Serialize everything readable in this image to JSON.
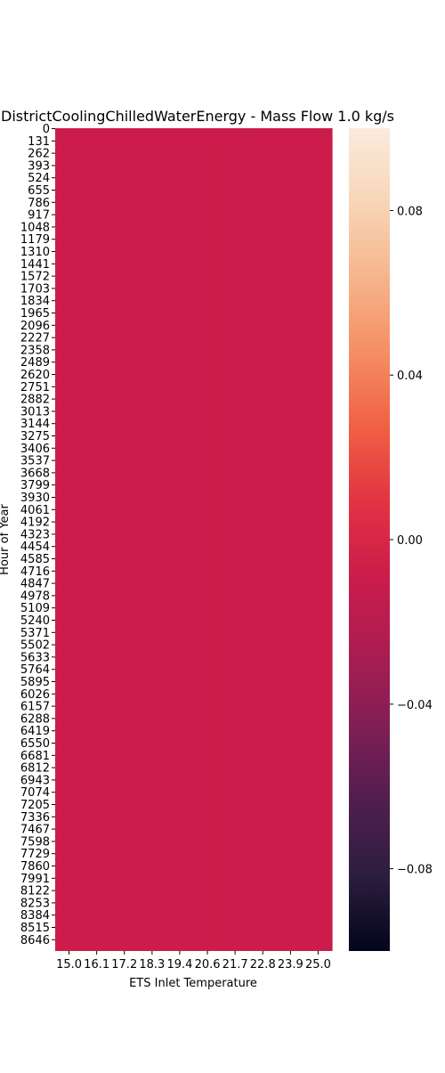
{
  "chart_data": {
    "type": "heatmap",
    "title": "DistrictCoolingChilledWaterEnergy - Mass Flow 1.0 kg/s",
    "xlabel": "ETS Inlet Temperature",
    "ylabel": "Hour of Year",
    "x_tick_labels": [
      "15.0",
      "16.1",
      "17.2",
      "18.3",
      "19.4",
      "20.6",
      "21.7",
      "22.8",
      "23.9",
      "25.0"
    ],
    "y_tick_labels": [
      "0",
      "131",
      "262",
      "393",
      "524",
      "655",
      "786",
      "917",
      "1048",
      "1179",
      "1310",
      "1441",
      "1572",
      "1703",
      "1834",
      "1965",
      "2096",
      "2227",
      "2358",
      "2489",
      "2620",
      "2751",
      "2882",
      "3013",
      "3144",
      "3275",
      "3406",
      "3537",
      "3668",
      "3799",
      "3930",
      "4061",
      "4192",
      "4323",
      "4454",
      "4585",
      "4716",
      "4847",
      "4978",
      "5109",
      "5240",
      "5371",
      "5502",
      "5633",
      "5764",
      "5895",
      "6026",
      "6157",
      "6288",
      "6419",
      "6550",
      "6681",
      "6812",
      "6943",
      "7074",
      "7205",
      "7336",
      "7467",
      "7598",
      "7729",
      "7860",
      "7991",
      "8122",
      "8253",
      "8384",
      "8515",
      "8646"
    ],
    "y_range": [
      0,
      8760
    ],
    "cell_value": 0.0,
    "cell_color": "#cb1c4b",
    "colorbar": {
      "range": [
        -0.1,
        0.1
      ],
      "ticks": [
        0.08,
        0.04,
        0.0,
        -0.04,
        -0.08
      ],
      "tick_labels": [
        "0.08",
        "0.04",
        "0.00",
        "−0.04",
        "−0.08"
      ],
      "colormap": "rocket",
      "stops": [
        "#03051a",
        "#2c1e3e",
        "#511e4f",
        "#801f55",
        "#ab1d52",
        "#cb1c4b",
        "#e13342",
        "#f06043",
        "#f58e63",
        "#f6b48c",
        "#f8d5b6",
        "#faebdd"
      ]
    },
    "grid": false
  }
}
